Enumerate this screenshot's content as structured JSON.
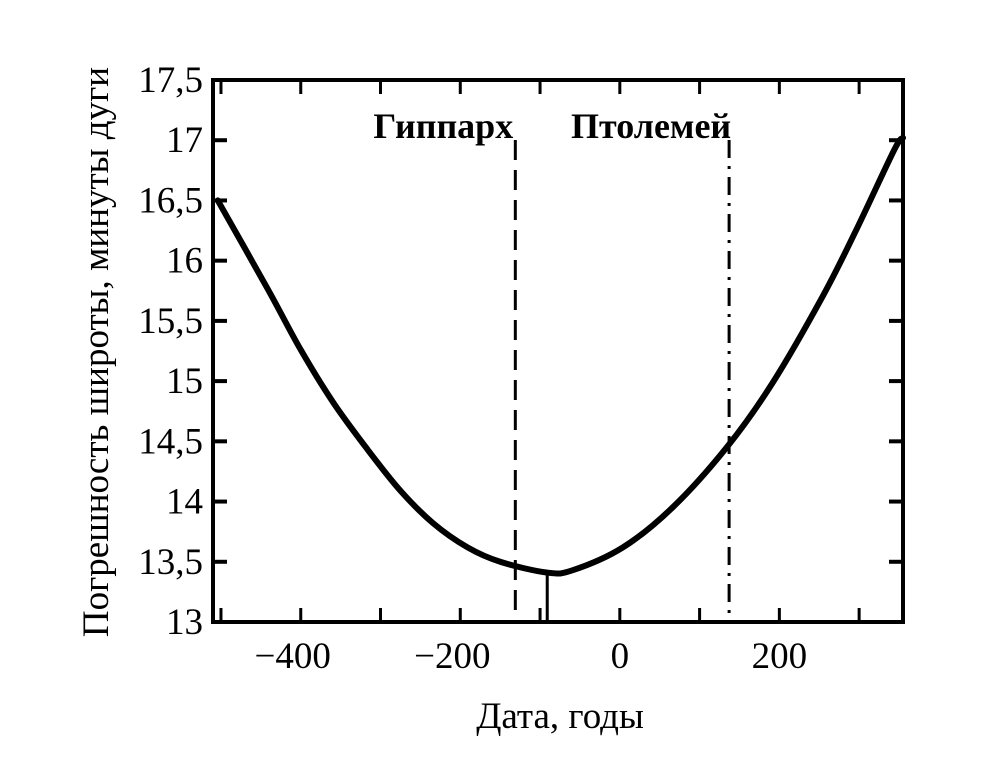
{
  "chart_data": {
    "type": "line",
    "title": "",
    "xlabel": "Дата, годы",
    "ylabel": "Погрешность широты, минуты дуги",
    "xlim": [
      -510,
      355
    ],
    "ylim": [
      13,
      17.5
    ],
    "xticks": [
      -400,
      -200,
      0,
      200
    ],
    "xtick_labels": [
      "−400",
      "−200",
      "0",
      "200"
    ],
    "yticks": [
      13,
      13.5,
      14,
      14.5,
      15,
      15.5,
      16,
      16.5,
      17,
      17.5
    ],
    "ytick_labels": [
      "13",
      "13,5",
      "14",
      "14,5",
      "15",
      "15,5",
      "16",
      "16,5",
      "17",
      "17,5"
    ],
    "grid": false,
    "series": [
      {
        "x": [
          -504,
          -441,
          -400,
          -359,
          -316,
          -275,
          -234,
          -191,
          -150,
          -91,
          -59,
          4,
          66,
          134,
          191,
          254,
          296,
          344,
          355
        ],
        "y": [
          16.5,
          15.76,
          15.26,
          14.82,
          14.43,
          14.09,
          13.82,
          13.62,
          13.5,
          13.41,
          13.43,
          13.62,
          13.95,
          14.45,
          14.98,
          15.7,
          16.25,
          16.92,
          17.02
        ],
        "color": "#000000"
      }
    ],
    "minimum_marker": {
      "x": -91,
      "y": 13.4
    },
    "annotations": [
      {
        "label": "Гиппарх",
        "x": -131,
        "style": "dashed"
      },
      {
        "label": "Птолемей",
        "x": 137,
        "style": "dash-dot"
      }
    ]
  }
}
